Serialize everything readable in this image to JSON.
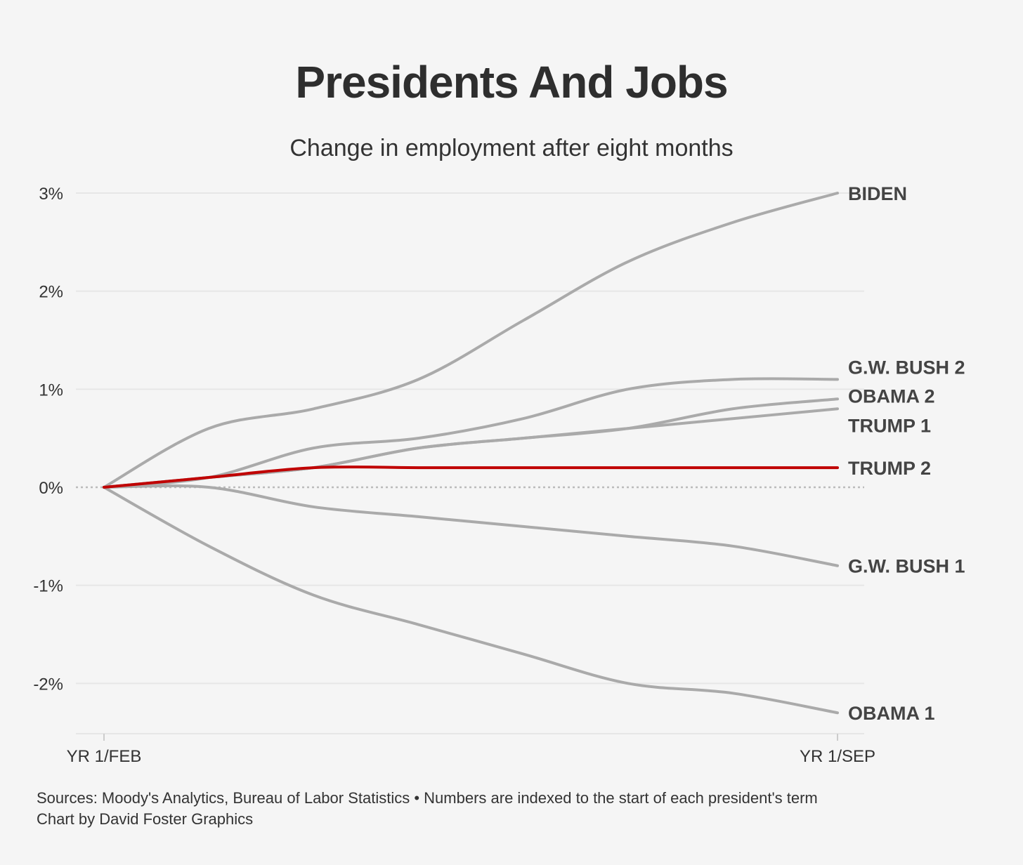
{
  "chart_data": {
    "type": "line",
    "title": "Presidents And Jobs",
    "subtitle": "Change in employment after eight months",
    "xlabel": "",
    "ylabel": "",
    "x_tick_labels": [
      "YR 1/FEB",
      "YR 1/SEP"
    ],
    "x": [
      0,
      1,
      2,
      3,
      4,
      5,
      6,
      7
    ],
    "ylim": [
      -2.5,
      3.0
    ],
    "y_ticks": [
      3,
      2,
      1,
      0,
      -1,
      -2
    ],
    "y_tick_labels": [
      "3%",
      "2%",
      "1%",
      "0%",
      "-1%",
      "-2%"
    ],
    "grid": true,
    "zero_line": "dotted",
    "series": [
      {
        "name": "BIDEN",
        "color": "#aaaaaa",
        "values": [
          0,
          0.6,
          0.8,
          1.1,
          1.7,
          2.3,
          2.7,
          3.0
        ]
      },
      {
        "name": "G.W. BUSH 2",
        "color": "#aaaaaa",
        "values": [
          0,
          0.1,
          0.4,
          0.5,
          0.7,
          1.0,
          1.1,
          1.1
        ]
      },
      {
        "name": "OBAMA 2",
        "color": "#aaaaaa",
        "values": [
          0,
          0.1,
          0.2,
          0.4,
          0.5,
          0.6,
          0.8,
          0.9
        ]
      },
      {
        "name": "TRUMP 1",
        "color": "#aaaaaa",
        "values": [
          0,
          0.1,
          0.2,
          0.4,
          0.5,
          0.6,
          0.7,
          0.8
        ]
      },
      {
        "name": "TRUMP 2",
        "color": "#c00000",
        "values": [
          0,
          0.1,
          0.2,
          0.2,
          0.2,
          0.2,
          0.2,
          0.2
        ]
      },
      {
        "name": "G.W. BUSH 1",
        "color": "#aaaaaa",
        "values": [
          0,
          0.0,
          -0.2,
          -0.3,
          -0.4,
          -0.5,
          -0.6,
          -0.8
        ]
      },
      {
        "name": "OBAMA 1",
        "color": "#aaaaaa",
        "values": [
          0,
          -0.6,
          -1.1,
          -1.4,
          -1.7,
          -2.0,
          -2.1,
          -2.3
        ]
      }
    ]
  },
  "footer": {
    "sources": "Sources: Moody's Analytics, Bureau of Labor Statistics • Numbers are indexed to the start of each president's term",
    "credit": "Chart by David Foster Graphics"
  }
}
